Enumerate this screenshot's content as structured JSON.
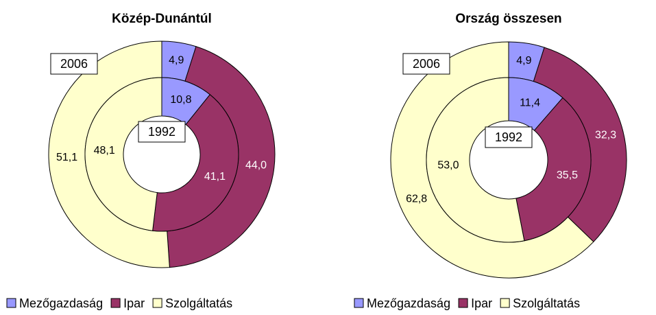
{
  "chart_data": [
    {
      "type": "donut",
      "title": "Közép-Dunántúl",
      "categories": [
        "Mezőgazdaság",
        "Ipar",
        "Szolgáltatás"
      ],
      "colors": [
        "#9999ff",
        "#993366",
        "#ffffcc"
      ],
      "series": [
        {
          "name": "2006",
          "values": [
            4.9,
            44.0,
            51.1
          ],
          "value_labels": [
            "4,9",
            "44,0",
            "51,1"
          ]
        },
        {
          "name": "1992",
          "values": [
            10.8,
            41.1,
            48.1
          ],
          "value_labels": [
            "10,8",
            "41,1",
            "48,1"
          ]
        }
      ]
    },
    {
      "type": "donut",
      "title": "Ország összesen",
      "categories": [
        "Mezőgazdaság",
        "Ipar",
        "Szolgáltatás"
      ],
      "colors": [
        "#9999ff",
        "#993366",
        "#ffffcc"
      ],
      "series": [
        {
          "name": "2006",
          "values": [
            4.9,
            32.3,
            62.8
          ],
          "value_labels": [
            "4,9",
            "32,3",
            "62,8"
          ]
        },
        {
          "name": "1992",
          "values": [
            11.4,
            35.5,
            53.0
          ],
          "value_labels": [
            "11,4",
            "35,5",
            "53,0"
          ]
        }
      ]
    }
  ]
}
